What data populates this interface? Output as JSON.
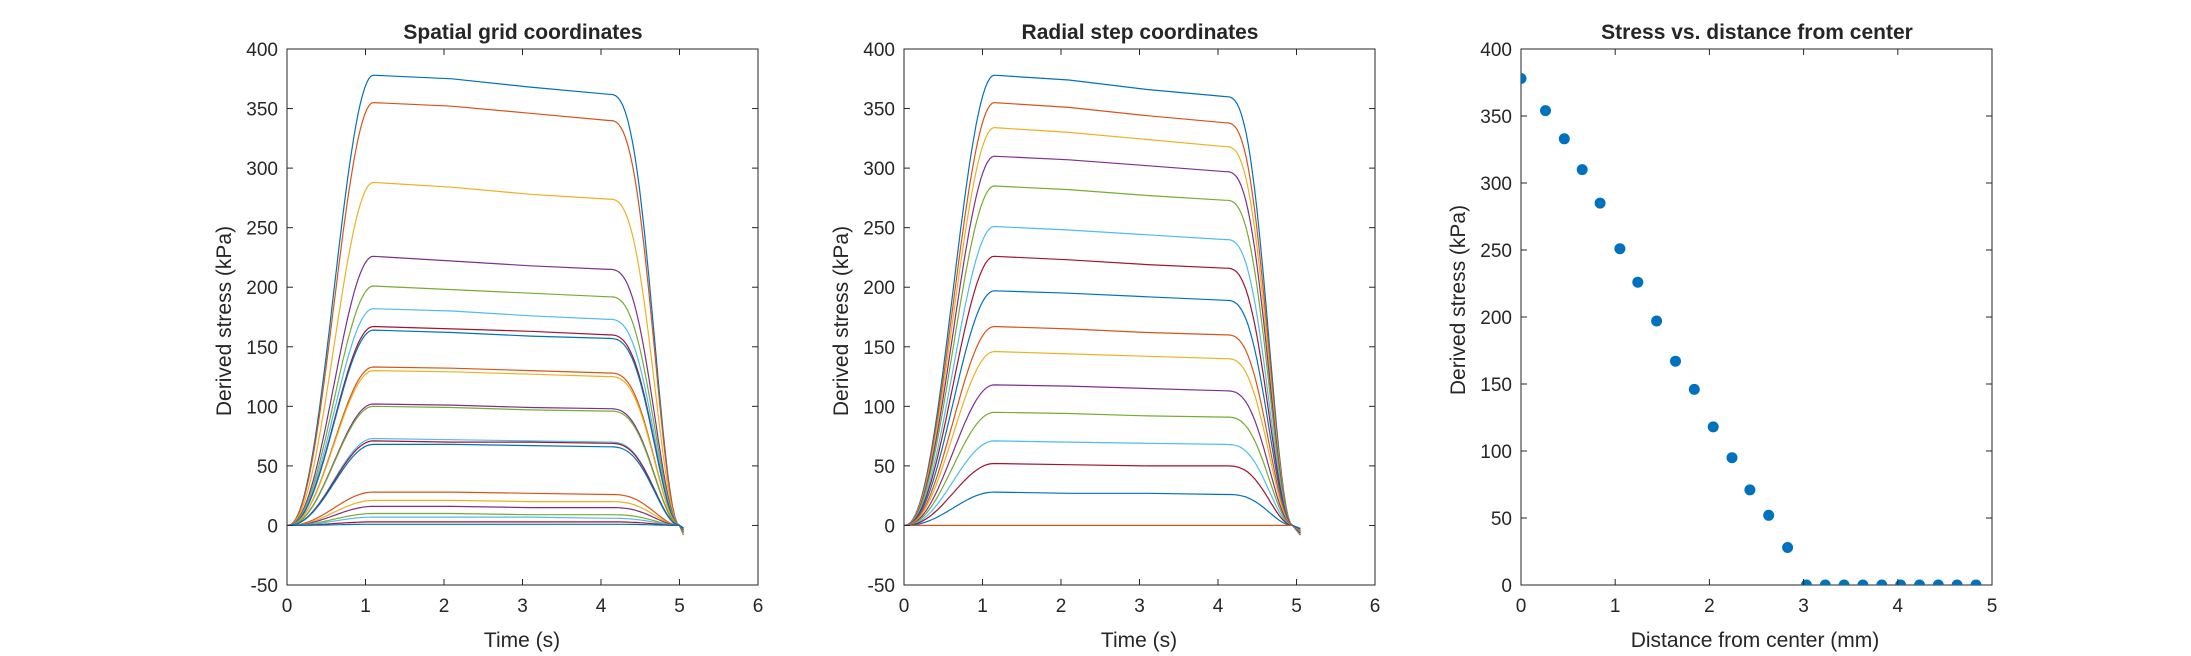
{
  "figure": {
    "background": "#ffffff",
    "axis_color": "#262626"
  },
  "series_colors": [
    "#0072BD",
    "#D95319",
    "#EDB120",
    "#7E2F8E",
    "#77AC30",
    "#4DBEEE",
    "#A2142F"
  ],
  "chart_data": [
    {
      "type": "line",
      "title": "Spatial grid coordinates",
      "xlabel": "Time (s)",
      "ylabel": "Derived stress (kPa)",
      "xlim": [
        0,
        6
      ],
      "ylim": [
        -50,
        400
      ],
      "xticks": [
        0,
        1,
        2,
        3,
        4,
        5,
        6
      ],
      "yticks": [
        -50,
        0,
        50,
        100,
        150,
        200,
        250,
        300,
        350,
        400
      ],
      "grid": false,
      "legend": "none",
      "time_profile": {
        "rise_end_s": 1.1,
        "decay_start_s": 4.1,
        "end_s": 5.0,
        "undershoot_end_s": 5.05
      },
      "series": [
        {
          "values": [
            0,
            378,
            375,
            368,
            362
          ]
        },
        {
          "values": [
            0,
            355,
            352,
            346,
            340
          ]
        },
        {
          "values": [
            0,
            288,
            284,
            278,
            274
          ]
        },
        {
          "values": [
            0,
            226,
            222,
            218,
            215
          ]
        },
        {
          "values": [
            0,
            201,
            198,
            195,
            192
          ]
        },
        {
          "values": [
            0,
            182,
            180,
            176,
            173
          ]
        },
        {
          "values": [
            0,
            167,
            165,
            163,
            160
          ]
        },
        {
          "values": [
            0,
            164,
            162,
            159,
            157
          ]
        },
        {
          "values": [
            0,
            133,
            132,
            130,
            128
          ]
        },
        {
          "values": [
            0,
            130,
            129,
            127,
            125
          ]
        },
        {
          "values": [
            0,
            102,
            101,
            99,
            98
          ]
        },
        {
          "values": [
            0,
            100,
            99,
            97,
            96
          ]
        },
        {
          "values": [
            0,
            73,
            72,
            71,
            70
          ]
        },
        {
          "values": [
            0,
            71,
            70,
            70,
            69
          ]
        },
        {
          "values": [
            0,
            68,
            68,
            67,
            66
          ]
        },
        {
          "values": [
            0,
            28,
            28,
            27,
            26
          ]
        },
        {
          "values": [
            0,
            21,
            21,
            20,
            20
          ]
        },
        {
          "values": [
            0,
            16,
            16,
            15,
            15
          ]
        },
        {
          "values": [
            0,
            10,
            10,
            9,
            9
          ]
        },
        {
          "values": [
            0,
            7,
            7,
            7,
            6
          ]
        },
        {
          "values": [
            0,
            3,
            3,
            3,
            3
          ]
        },
        {
          "values": [
            0,
            1,
            1,
            1,
            1
          ]
        }
      ]
    },
    {
      "type": "line",
      "title": "Radial step coordinates",
      "xlabel": "Time (s)",
      "ylabel": "Derived stress (kPa)",
      "xlim": [
        0,
        6
      ],
      "ylim": [
        -50,
        400
      ],
      "xticks": [
        0,
        1,
        2,
        3,
        4,
        5,
        6
      ],
      "yticks": [
        -50,
        0,
        50,
        100,
        150,
        200,
        250,
        300,
        350,
        400
      ],
      "grid": false,
      "legend": "none",
      "time_profile": {
        "rise_end_s": 1.15,
        "decay_start_s": 4.1,
        "end_s": 4.95,
        "undershoot_end_s": 5.05
      },
      "series": [
        {
          "values": [
            0,
            378,
            374,
            366,
            360
          ]
        },
        {
          "values": [
            0,
            355,
            351,
            344,
            338
          ]
        },
        {
          "values": [
            0,
            334,
            330,
            324,
            318
          ]
        },
        {
          "values": [
            0,
            310,
            307,
            302,
            297
          ]
        },
        {
          "values": [
            0,
            285,
            282,
            277,
            273
          ]
        },
        {
          "values": [
            0,
            251,
            248,
            244,
            240
          ]
        },
        {
          "values": [
            0,
            226,
            223,
            219,
            216
          ]
        },
        {
          "values": [
            0,
            197,
            195,
            192,
            189
          ]
        },
        {
          "values": [
            0,
            167,
            165,
            162,
            160
          ]
        },
        {
          "values": [
            0,
            146,
            144,
            142,
            140
          ]
        },
        {
          "values": [
            0,
            118,
            117,
            115,
            113
          ]
        },
        {
          "values": [
            0,
            95,
            94,
            92,
            91
          ]
        },
        {
          "values": [
            0,
            71,
            70,
            69,
            68
          ]
        },
        {
          "values": [
            0,
            52,
            51,
            50,
            50
          ]
        },
        {
          "values": [
            0,
            28,
            27,
            27,
            26
          ]
        },
        {
          "values": [
            0,
            0,
            0,
            0,
            0
          ]
        }
      ]
    },
    {
      "type": "scatter",
      "title": "Stress vs. distance from center",
      "xlabel": "Distance from center (mm)",
      "ylabel": "Derived stress (kPa)",
      "xlim": [
        0,
        5
      ],
      "ylim": [
        0,
        400
      ],
      "xticks": [
        0,
        1,
        2,
        3,
        4,
        5
      ],
      "yticks": [
        0,
        50,
        100,
        150,
        200,
        250,
        300,
        350,
        400
      ],
      "grid": false,
      "legend": "none",
      "marker_color": "#0072BD",
      "x": [
        0,
        0.26,
        0.46,
        0.65,
        0.84,
        1.05,
        1.24,
        1.44,
        1.64,
        1.84,
        2.04,
        2.24,
        2.43,
        2.63,
        2.83,
        3.03,
        3.23,
        3.43,
        3.63,
        3.83,
        4.03,
        4.23,
        4.43,
        4.63,
        4.83
      ],
      "y": [
        378,
        354,
        333,
        310,
        285,
        251,
        226,
        197,
        167,
        146,
        118,
        95,
        71,
        52,
        28,
        0,
        0,
        0,
        0,
        0,
        0,
        0,
        0,
        0,
        0
      ]
    }
  ]
}
